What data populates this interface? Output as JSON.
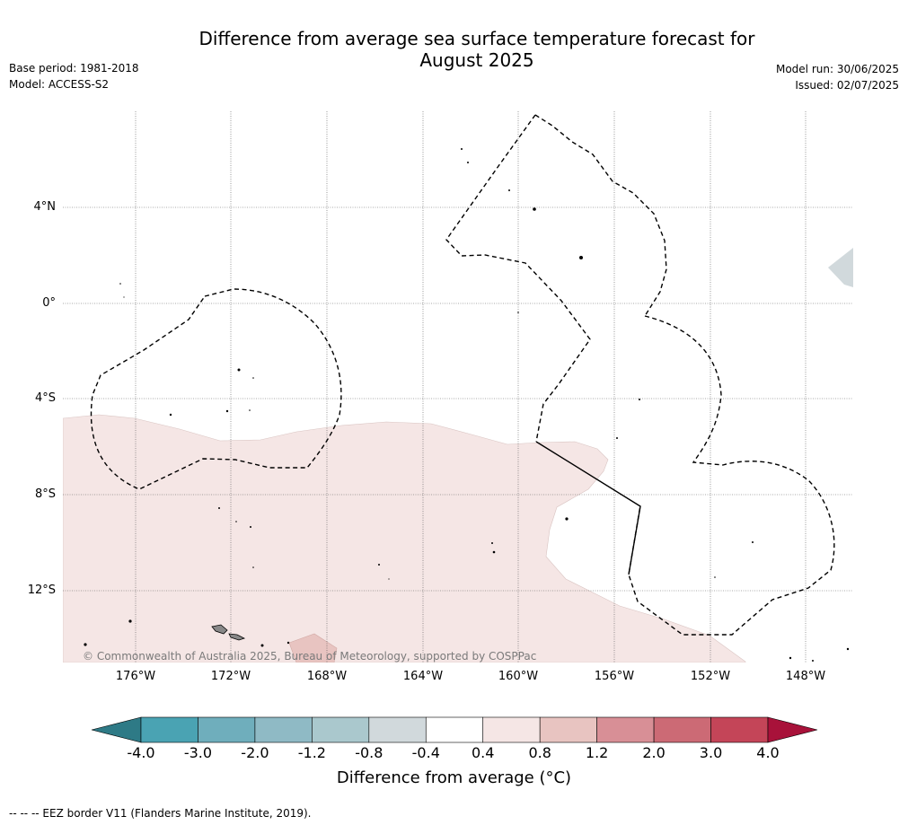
{
  "title_line1": "Difference from average sea surface temperature forecast for",
  "title_line2": "August 2025",
  "base_period": "Base period: 1981-2018",
  "model": "Model: ACCESS-S2",
  "model_run": "Model run: 30/06/2025",
  "issued": "Issued: 02/07/2025",
  "latitude_labels": [
    "4°N",
    "0°",
    "4°S",
    "8°S",
    "12°S"
  ],
  "longitude_labels": [
    "176°W",
    "172°W",
    "168°W",
    "164°W",
    "160°W",
    "156°W",
    "152°W",
    "148°W"
  ],
  "copyright": "© Commonwealth of Australia 2025, Bureau of Meteorology, supported by COSPPac",
  "colorbar": {
    "ticks": [
      "-4.0",
      "-3.0",
      "-2.0",
      "-1.2",
      "-0.8",
      "-0.4",
      "0.4",
      "0.8",
      "1.2",
      "2.0",
      "3.0",
      "4.0"
    ],
    "colors": [
      "#2e7a86",
      "#4aa3b3",
      "#6faebc",
      "#8fbac5",
      "#aac8cd",
      "#d1d9dc",
      "#ffffff",
      "#f5e6e5",
      "#e8c4c1",
      "#d88f96",
      "#cc6a75",
      "#c44558",
      "#a8123a"
    ],
    "label": "Difference from average (°C)"
  },
  "map_colors": {
    "warm_0.4_0.8": "#f5e6e5",
    "warm_0.8_1.2": "#e8c4c1",
    "cool_-0.8_-0.4": "#d1d9dc"
  },
  "footnote": "--  --  -- EEZ border V11 (Flanders Marine Institute, 2019)."
}
